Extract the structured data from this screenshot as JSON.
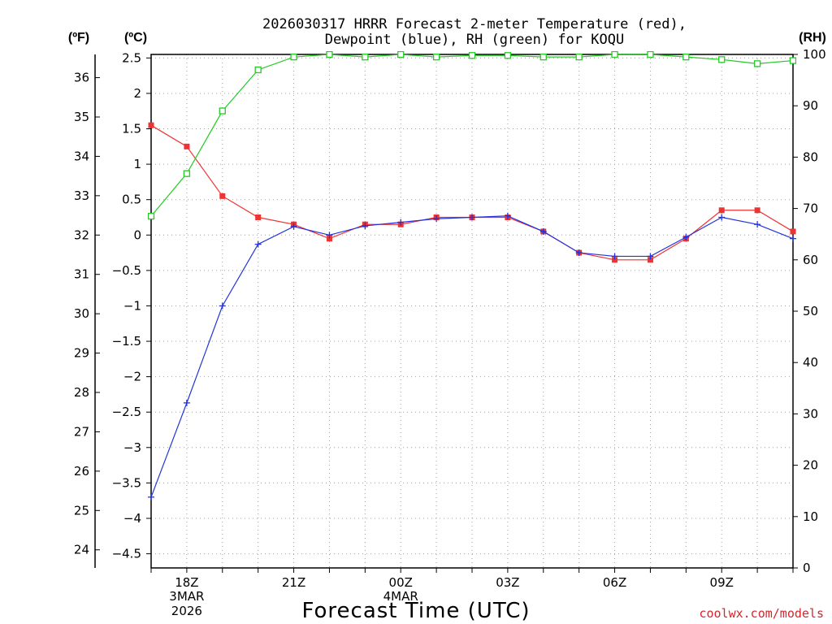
{
  "title_line1": "2026030317 HRRR Forecast 2-meter Temperature (red),",
  "title_line2": "Dewpoint (blue), RH (green) for KOQU",
  "credit": "coolwx.com/models",
  "chart_data": {
    "type": "line",
    "title": "2026030317 HRRR Forecast 2-meter Temperature (red), Dewpoint (blue), RH (green) for KOQU",
    "xlabel": "Forecast Time (UTC)",
    "x": [
      "17Z",
      "18Z",
      "19Z",
      "20Z",
      "21Z",
      "22Z",
      "23Z",
      "00Z",
      "01Z",
      "02Z",
      "03Z",
      "04Z",
      "05Z",
      "06Z",
      "07Z",
      "08Z",
      "09Z",
      "10Z",
      "11Z"
    ],
    "x_tick_labels": [
      {
        "hour": "18Z",
        "index": 1,
        "sub1": "3MAR",
        "sub2": "2026"
      },
      {
        "hour": "21Z",
        "index": 4,
        "sub1": "",
        "sub2": ""
      },
      {
        "hour": "00Z",
        "index": 7,
        "sub1": "4MAR",
        "sub2": ""
      },
      {
        "hour": "03Z",
        "index": 10,
        "sub1": "",
        "sub2": ""
      },
      {
        "hour": "06Z",
        "index": 13,
        "sub1": "",
        "sub2": ""
      },
      {
        "hour": "09Z",
        "index": 16,
        "sub1": "",
        "sub2": ""
      }
    ],
    "y_left_inner": {
      "unit_label": "(ºC)",
      "range": [
        -4.7,
        2.55
      ],
      "ticks": [
        -4.5,
        -4,
        -3.5,
        -3,
        -2.5,
        -2,
        -1.5,
        -1,
        -0.5,
        0,
        0.5,
        1,
        1.5,
        2,
        2.5
      ],
      "tick_labels": [
        "−4.5",
        "−4",
        "−3.5",
        "−3",
        "−2.5",
        "−2",
        "−1.5",
        "−1",
        "−0.5",
        "0",
        "0.5",
        "1",
        "1.5",
        "2",
        "2.5"
      ]
    },
    "y_left_outer": {
      "unit_label": "(ºF)",
      "ticks": [
        24,
        25,
        26,
        27,
        28,
        29,
        30,
        31,
        32,
        33,
        34,
        35,
        36
      ]
    },
    "y_right": {
      "unit_label": "(RH)",
      "range": [
        0,
        100
      ],
      "ticks": [
        0,
        10,
        20,
        30,
        40,
        50,
        60,
        70,
        80,
        90,
        100
      ]
    },
    "grid": true,
    "series": [
      {
        "name": "Temperature (red)",
        "axis": "C",
        "color": "#ee3333",
        "marker": "filled-square",
        "values": [
          1.55,
          1.25,
          0.55,
          0.25,
          0.15,
          -0.05,
          0.15,
          0.15,
          0.25,
          0.25,
          0.25,
          0.05,
          -0.25,
          -0.35,
          -0.35,
          -0.05,
          0.35,
          0.35,
          0.05
        ]
      },
      {
        "name": "Dewpoint (blue)",
        "axis": "C",
        "color": "#2233dd",
        "marker": "plus",
        "values": [
          -3.7,
          -2.37,
          -1.0,
          -0.13,
          0.12,
          0.0,
          0.13,
          0.18,
          0.23,
          0.25,
          0.27,
          0.05,
          -0.25,
          -0.3,
          -0.3,
          -0.03,
          0.25,
          0.15,
          -0.05
        ]
      },
      {
        "name": "RH (green)",
        "axis": "RH",
        "color": "#22cc22",
        "marker": "open-square",
        "values": [
          68.5,
          76.8,
          89.0,
          97.0,
          99.5,
          100.0,
          99.5,
          100.0,
          99.5,
          99.8,
          99.8,
          99.5,
          99.5,
          100.0,
          100.0,
          99.5,
          99.0,
          98.2,
          98.8
        ]
      }
    ]
  }
}
